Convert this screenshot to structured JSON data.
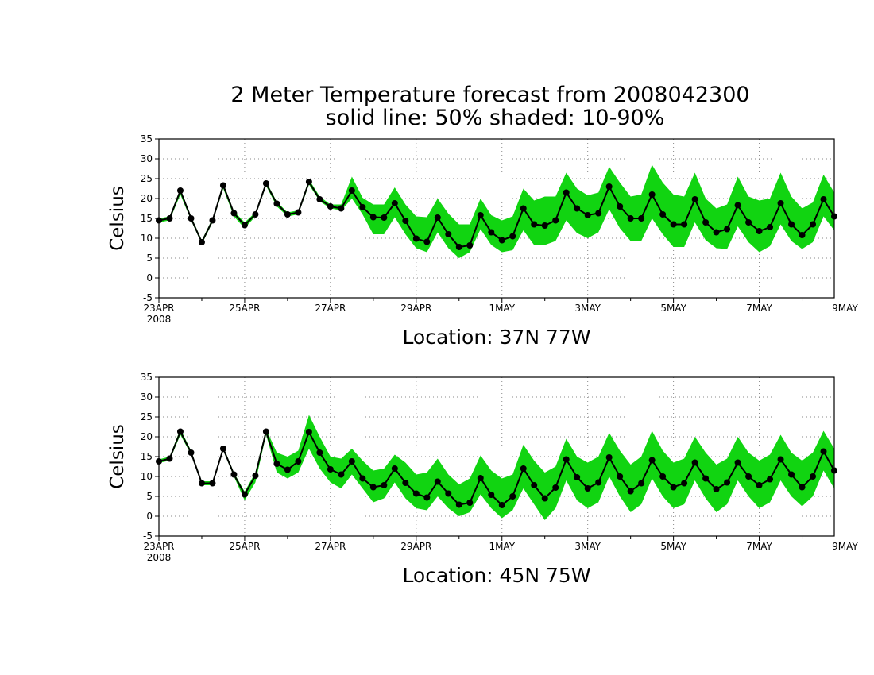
{
  "title": {
    "line1": "2 Meter Temperature forecast from 2008042300",
    "line2": "solid line: 50% shaded: 10-90%"
  },
  "colors": {
    "band": "#11d411",
    "line": "#000000",
    "background": "#ffffff",
    "grid": "#888888"
  },
  "chart_data": [
    {
      "type": "line",
      "location_label": "Location: 37N 77W",
      "ylabel": "Celsius",
      "ylim": [
        -5,
        35
      ],
      "yticks": [
        "-5",
        "0",
        "5",
        "10",
        "15",
        "20",
        "25",
        "30",
        "35"
      ],
      "xlim": [
        0,
        63
      ],
      "xticks": [
        "23APR",
        "25APR",
        "27APR",
        "29APR",
        "1MAY",
        "3MAY",
        "5MAY",
        "7MAY",
        "9MAY"
      ],
      "xtick_sublabel": "2008",
      "grid": true,
      "x_unit": "6-hourly steps from 2008042300",
      "series": [
        {
          "name": "50%",
          "values": [
            14.5,
            15,
            22,
            15,
            9,
            14.5,
            23.3,
            16.3,
            13.3,
            16,
            23.8,
            18.7,
            16,
            16.5,
            24.2,
            19.8,
            18,
            17.5,
            22,
            17.8,
            15.3,
            15.2,
            18.8,
            14.4,
            9.9,
            9.1,
            15.2,
            11,
            7.8,
            8.2,
            15.8,
            11.5,
            9.5,
            10.5,
            17.5,
            13.5,
            13.2,
            14.5,
            21.5,
            17.5,
            15.8,
            16.3,
            23,
            18,
            15,
            15,
            21,
            16,
            13.5,
            13.5,
            19.8,
            14,
            11.5,
            12.3,
            18.3,
            14,
            11.8,
            12.8,
            18.8,
            13.5,
            10.8,
            13.5,
            19.8,
            15.5
          ]
        },
        {
          "name": "90%",
          "values": [
            15,
            15.5,
            22.5,
            15.5,
            9.5,
            15,
            23.8,
            16.8,
            14,
            16.5,
            24.3,
            19.2,
            16.5,
            17,
            24.8,
            20.5,
            18.5,
            18.5,
            25.5,
            20.2,
            18.5,
            18.5,
            22.8,
            18.5,
            15.5,
            15.3,
            20,
            16.2,
            13.5,
            13.5,
            20,
            15.8,
            14.5,
            15.5,
            22.5,
            19.5,
            20.5,
            20.5,
            26.5,
            22.5,
            20.8,
            21.5,
            28,
            24,
            20.5,
            21,
            28.5,
            24,
            21,
            20.5,
            26.5,
            20,
            17.5,
            18.5,
            25.5,
            20.5,
            19.5,
            20,
            26.5,
            20.5,
            17.5,
            19,
            26,
            21.5
          ]
        },
        {
          "name": "10%",
          "values": [
            14,
            14.5,
            21,
            14.5,
            8.5,
            14,
            22.5,
            15.5,
            12.5,
            15.5,
            23.2,
            18,
            15.5,
            16,
            23.5,
            19.3,
            17.5,
            17,
            20,
            16,
            11,
            11,
            15.3,
            11,
            7.5,
            6.5,
            11.5,
            7.5,
            5,
            6.5,
            12.3,
            8.3,
            6.5,
            7,
            12,
            8.3,
            8.3,
            9.3,
            14.5,
            11.3,
            10,
            11.5,
            17.3,
            12.5,
            9.3,
            9.3,
            15,
            11,
            7.8,
            7.8,
            14,
            9.5,
            7.5,
            7.3,
            13,
            9,
            6.5,
            8,
            13.5,
            9.3,
            7.3,
            9,
            15.5,
            12
          ]
        }
      ]
    },
    {
      "type": "line",
      "location_label": "Location: 45N 75W",
      "ylabel": "Celsius",
      "ylim": [
        -5,
        35
      ],
      "yticks": [
        "-5",
        "0",
        "5",
        "10",
        "15",
        "20",
        "25",
        "30",
        "35"
      ],
      "xlim": [
        0,
        63
      ],
      "xticks": [
        "23APR",
        "25APR",
        "27APR",
        "29APR",
        "1MAY",
        "3MAY",
        "5MAY",
        "7MAY",
        "9MAY"
      ],
      "xtick_sublabel": "2008",
      "grid": true,
      "x_unit": "6-hourly steps from 2008042300",
      "series": [
        {
          "name": "50%",
          "values": [
            13.8,
            14.5,
            21.3,
            16,
            8.3,
            8.3,
            17,
            10.5,
            5.5,
            10.2,
            21.3,
            13.2,
            11.7,
            13.8,
            21.2,
            16,
            11.8,
            10.5,
            13.8,
            9.5,
            7.3,
            7.8,
            12,
            8.4,
            5.7,
            4.7,
            8.7,
            5.7,
            2.9,
            3.4,
            9.6,
            5.4,
            2.8,
            5,
            12,
            7.8,
            4.5,
            7.2,
            14.3,
            9.8,
            7,
            8.5,
            14.8,
            10,
            6.3,
            8.3,
            14.1,
            10,
            7.3,
            8.3,
            13.5,
            9.5,
            6.8,
            8.5,
            13.5,
            10,
            7.8,
            9.3,
            14.3,
            10.5,
            7.3,
            10,
            16.3,
            11.5
          ]
        },
        {
          "name": "90%",
          "values": [
            14.3,
            15,
            22,
            16.5,
            8.8,
            8.8,
            17.5,
            11,
            6.2,
            11,
            22,
            16,
            15,
            16.5,
            25.5,
            20,
            15,
            14.5,
            17,
            14,
            11.5,
            12,
            15.5,
            13.5,
            10.5,
            11,
            14.5,
            10.5,
            8,
            9.5,
            15.3,
            11.5,
            9.5,
            10.5,
            18,
            14,
            11,
            12.5,
            19.5,
            15,
            13.5,
            15,
            21,
            16.5,
            13,
            15,
            21.5,
            16.5,
            13.5,
            14.5,
            20,
            16,
            13,
            14.5,
            20,
            16,
            14,
            15.5,
            20.5,
            16,
            14,
            16,
            21.5,
            17
          ]
        },
        {
          "name": "10%",
          "values": [
            13.4,
            14,
            20.5,
            15.5,
            7.8,
            7.8,
            16.5,
            10,
            4,
            8.5,
            20.5,
            11,
            9.5,
            11,
            17,
            12,
            8.5,
            7,
            10.5,
            7,
            3.5,
            4.5,
            8.5,
            4.5,
            2,
            1.5,
            5,
            2,
            0,
            1,
            5.5,
            2,
            -0.5,
            1.5,
            7,
            3,
            -1,
            2,
            9,
            4,
            2,
            3.5,
            10,
            5,
            1,
            3,
            9.5,
            5,
            2,
            3,
            9,
            4.5,
            1,
            3,
            9,
            5,
            2,
            3.5,
            9,
            5,
            2.5,
            5,
            11.5,
            7
          ]
        }
      ]
    }
  ]
}
